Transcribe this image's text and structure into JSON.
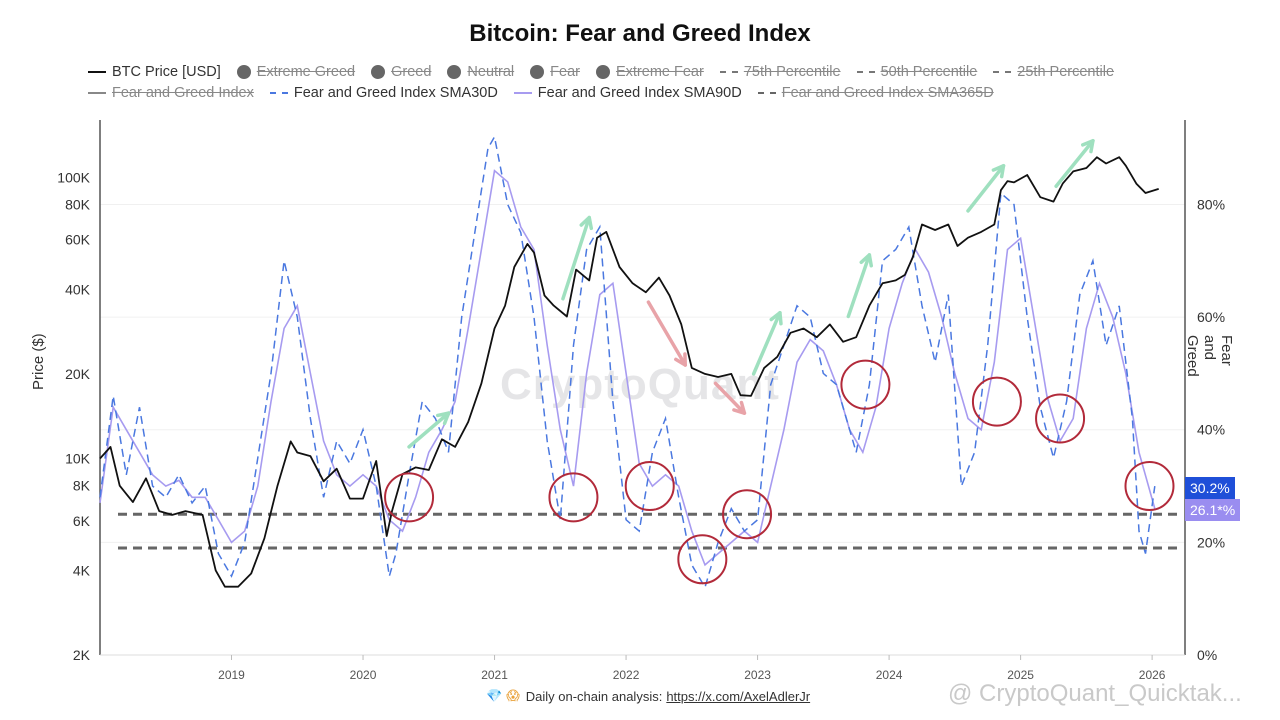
{
  "title": "Bitcoin: Fear and Greed Index",
  "legend": {
    "row1": [
      {
        "label": "BTC Price [USD]",
        "swatch": "solid",
        "color": "#111111",
        "enabled": true
      },
      {
        "label": "Extreme Greed",
        "swatch": "dot",
        "color": "#666666",
        "enabled": false
      },
      {
        "label": "Greed",
        "swatch": "dot",
        "color": "#666666",
        "enabled": false
      },
      {
        "label": "Neutral",
        "swatch": "dot",
        "color": "#666666",
        "enabled": false
      },
      {
        "label": "Fear",
        "swatch": "dot",
        "color": "#666666",
        "enabled": false
      },
      {
        "label": "Extreme Fear",
        "swatch": "dot",
        "color": "#666666",
        "enabled": false
      },
      {
        "label": "75th Percentile",
        "swatch": "dash",
        "color": "#777777",
        "enabled": false
      },
      {
        "label": "50th Percentile",
        "swatch": "dash",
        "color": "#777777",
        "enabled": false
      },
      {
        "label": "25th Percentile",
        "swatch": "dash",
        "color": "#777777",
        "enabled": false
      }
    ],
    "row2": [
      {
        "label": "Fear and Greed Index",
        "swatch": "solid",
        "color": "#888888",
        "enabled": false
      },
      {
        "label": "Fear and Greed Index SMA30D",
        "swatch": "dash",
        "color": "#4a78e0",
        "enabled": true
      },
      {
        "label": "Fear and Greed Index SMA90D",
        "swatch": "solid",
        "color": "#a79bf0",
        "enabled": true
      },
      {
        "label": "Fear and Greed Index SMA365D",
        "swatch": "dash",
        "color": "#666666",
        "enabled": false
      }
    ]
  },
  "axes": {
    "left_label": "Price ($)",
    "right_label": "Fear and Greed"
  },
  "badges": {
    "sma30": {
      "text": "30.2%",
      "color": "#1f4fd8"
    },
    "sma90": {
      "text": "26.1*%",
      "color": "#9a8df0"
    }
  },
  "footer": {
    "gem": "💎",
    "cry": "😱",
    "text": "Daily on-chain analysis:",
    "link": "https://x.com/AxelAdlerJr"
  },
  "watermarks": {
    "center": "CryptoQuant",
    "bottom": "@ CryptoQuant_Quicktak..."
  },
  "chart_data": {
    "type": "line",
    "x_ticks": [
      "2019",
      "2020",
      "2021",
      "2022",
      "2023",
      "2024",
      "2025",
      "2026"
    ],
    "y_left": {
      "scale": "log",
      "ticks": [
        "100K",
        "80K",
        "60K",
        "40K",
        "20K",
        "10K",
        "8K",
        "6K",
        "4K",
        "2K"
      ],
      "range": [
        2000,
        160000
      ]
    },
    "y_right": {
      "ticks": [
        "80%",
        "60%",
        "40%",
        "20%",
        "0%"
      ],
      "range": [
        0,
        95
      ]
    },
    "reference_lines": [
      {
        "label": "25th Percentile",
        "value": 25
      },
      {
        "label": "Extreme Fear",
        "value": 19
      }
    ],
    "series": [
      {
        "name": "BTC Price [USD]",
        "axis": "left",
        "color": "#111111",
        "x": [
          2018.0,
          2018.08,
          2018.15,
          2018.25,
          2018.35,
          2018.45,
          2018.55,
          2018.65,
          2018.78,
          2018.88,
          2018.95,
          2019.05,
          2019.15,
          2019.25,
          2019.35,
          2019.45,
          2019.5,
          2019.6,
          2019.7,
          2019.8,
          2019.9,
          2020.0,
          2020.1,
          2020.18,
          2020.22,
          2020.3,
          2020.4,
          2020.5,
          2020.6,
          2020.7,
          2020.8,
          2020.9,
          2021.0,
          2021.08,
          2021.15,
          2021.25,
          2021.3,
          2021.38,
          2021.45,
          2021.55,
          2021.62,
          2021.72,
          2021.78,
          2021.85,
          2021.95,
          2022.05,
          2022.15,
          2022.25,
          2022.33,
          2022.42,
          2022.5,
          2022.6,
          2022.7,
          2022.8,
          2022.87,
          2022.95,
          2023.05,
          2023.15,
          2023.25,
          2023.35,
          2023.45,
          2023.55,
          2023.65,
          2023.75,
          2023.85,
          2023.95,
          2024.05,
          2024.12,
          2024.18,
          2024.25,
          2024.35,
          2024.45,
          2024.52,
          2024.6,
          2024.7,
          2024.8,
          2024.85,
          2024.9,
          2024.95,
          2025.05,
          2025.15,
          2025.25,
          2025.32,
          2025.4,
          2025.5,
          2025.58,
          2025.65,
          2025.75,
          2025.8,
          2025.88,
          2025.95,
          2026.05
        ],
        "values": [
          10000,
          11000,
          8000,
          7000,
          8500,
          6500,
          6300,
          6500,
          6300,
          4000,
          3500,
          3500,
          3900,
          5200,
          8000,
          11500,
          10500,
          10200,
          8300,
          9200,
          7200,
          7200,
          9800,
          5300,
          6500,
          8800,
          9300,
          9100,
          11700,
          11000,
          13500,
          18500,
          29000,
          35000,
          48000,
          58000,
          54000,
          38000,
          35000,
          32000,
          47000,
          43000,
          61000,
          64000,
          48000,
          42000,
          39000,
          44000,
          38000,
          30000,
          21000,
          20000,
          19500,
          20000,
          16800,
          16700,
          21000,
          23000,
          28000,
          29000,
          27000,
          30000,
          26000,
          27000,
          35000,
          42000,
          43000,
          45000,
          52000,
          68000,
          65000,
          68000,
          57000,
          61000,
          64000,
          68000,
          90000,
          97000,
          96000,
          102000,
          85000,
          82000,
          95000,
          105000,
          108000,
          118000,
          112000,
          118000,
          110000,
          95000,
          88000,
          91000
        ]
      },
      {
        "name": "Fear and Greed Index SMA30D",
        "axis": "right",
        "color": "#4a78e0",
        "x": [
          2018.0,
          2018.1,
          2018.2,
          2018.3,
          2018.4,
          2018.5,
          2018.6,
          2018.7,
          2018.8,
          2018.9,
          2019.0,
          2019.1,
          2019.2,
          2019.3,
          2019.4,
          2019.5,
          2019.6,
          2019.7,
          2019.8,
          2019.9,
          2020.0,
          2020.1,
          2020.2,
          2020.25,
          2020.35,
          2020.45,
          2020.55,
          2020.65,
          2020.75,
          2020.85,
          2020.95,
          2021.0,
          2021.1,
          2021.2,
          2021.3,
          2021.4,
          2021.5,
          2021.6,
          2021.7,
          2021.8,
          2021.9,
          2022.0,
          2022.1,
          2022.2,
          2022.3,
          2022.4,
          2022.5,
          2022.6,
          2022.7,
          2022.8,
          2022.9,
          2023.0,
          2023.1,
          2023.2,
          2023.3,
          2023.4,
          2023.5,
          2023.6,
          2023.7,
          2023.75,
          2023.85,
          2023.95,
          2024.05,
          2024.15,
          2024.25,
          2024.35,
          2024.45,
          2024.55,
          2024.65,
          2024.75,
          2024.85,
          2024.95,
          2025.05,
          2025.15,
          2025.25,
          2025.35,
          2025.45,
          2025.55,
          2025.65,
          2025.75,
          2025.85,
          2025.9,
          2025.95,
          2026.02
        ],
        "values": [
          28,
          46,
          32,
          44,
          30,
          28,
          32,
          27,
          30,
          18,
          14,
          20,
          35,
          50,
          70,
          60,
          42,
          28,
          38,
          34,
          40,
          30,
          14,
          18,
          32,
          45,
          42,
          36,
          60,
          75,
          90,
          92,
          80,
          75,
          60,
          38,
          24,
          55,
          72,
          76,
          45,
          24,
          22,
          36,
          42,
          28,
          16,
          12,
          20,
          26,
          22,
          24,
          48,
          55,
          62,
          60,
          50,
          48,
          40,
          36,
          48,
          70,
          72,
          76,
          62,
          52,
          64,
          30,
          36,
          55,
          82,
          80,
          60,
          44,
          35,
          45,
          64,
          70,
          55,
          62,
          42,
          22,
          18,
          30
        ]
      },
      {
        "name": "Fear and Greed Index SMA90D",
        "axis": "right",
        "color": "#a79bf0",
        "x": [
          2018.0,
          2018.1,
          2018.2,
          2018.3,
          2018.4,
          2018.5,
          2018.6,
          2018.7,
          2018.8,
          2018.9,
          2019.0,
          2019.1,
          2019.2,
          2019.3,
          2019.4,
          2019.5,
          2019.6,
          2019.7,
          2019.8,
          2019.9,
          2020.0,
          2020.1,
          2020.2,
          2020.3,
          2020.4,
          2020.5,
          2020.6,
          2020.7,
          2020.8,
          2020.9,
          2021.0,
          2021.1,
          2021.2,
          2021.3,
          2021.4,
          2021.5,
          2021.6,
          2021.7,
          2021.8,
          2021.9,
          2022.0,
          2022.1,
          2022.2,
          2022.3,
          2022.4,
          2022.5,
          2022.6,
          2022.7,
          2022.8,
          2022.9,
          2023.0,
          2023.1,
          2023.2,
          2023.3,
          2023.4,
          2023.5,
          2023.6,
          2023.7,
          2023.8,
          2023.9,
          2024.0,
          2024.1,
          2024.2,
          2024.3,
          2024.4,
          2024.5,
          2024.6,
          2024.7,
          2024.8,
          2024.9,
          2025.0,
          2025.1,
          2025.2,
          2025.3,
          2025.4,
          2025.5,
          2025.6,
          2025.7,
          2025.8,
          2025.9,
          2026.02
        ],
        "values": [
          27,
          44,
          40,
          36,
          32,
          30,
          31,
          28,
          28,
          24,
          20,
          22,
          30,
          45,
          58,
          62,
          50,
          38,
          32,
          30,
          32,
          30,
          24,
          22,
          28,
          36,
          40,
          45,
          58,
          72,
          86,
          84,
          76,
          72,
          55,
          40,
          30,
          50,
          64,
          66,
          50,
          34,
          30,
          32,
          30,
          22,
          16,
          18,
          20,
          22,
          20,
          30,
          40,
          52,
          56,
          54,
          48,
          40,
          36,
          44,
          58,
          66,
          72,
          68,
          60,
          50,
          42,
          40,
          52,
          72,
          74,
          60,
          46,
          38,
          42,
          58,
          66,
          60,
          50,
          36,
          26
        ]
      }
    ],
    "annotations": {
      "circles": [
        {
          "x": 2020.35,
          "y": 28
        },
        {
          "x": 2021.6,
          "y": 28
        },
        {
          "x": 2022.18,
          "y": 30
        },
        {
          "x": 2022.58,
          "y": 17
        },
        {
          "x": 2022.92,
          "y": 25
        },
        {
          "x": 2023.82,
          "y": 48
        },
        {
          "x": 2024.82,
          "y": 45
        },
        {
          "x": 2025.3,
          "y": 42
        },
        {
          "x": 2025.98,
          "y": 30
        }
      ],
      "arrows_up": [
        {
          "x0": 2020.35,
          "y0": 11000,
          "x1": 2020.65,
          "y1": 14500
        },
        {
          "x0": 2021.52,
          "y0": 37000,
          "x1": 2021.72,
          "y1": 72000
        },
        {
          "x0": 2022.97,
          "y0": 20000,
          "x1": 2023.17,
          "y1": 33000
        },
        {
          "x0": 2023.69,
          "y0": 32000,
          "x1": 2023.85,
          "y1": 53000
        },
        {
          "x0": 2024.6,
          "y0": 76000,
          "x1": 2024.87,
          "y1": 110000
        },
        {
          "x0": 2025.27,
          "y0": 93000,
          "x1": 2025.55,
          "y1": 135000
        }
      ],
      "arrows_down": [
        {
          "x0": 2022.17,
          "y0": 36000,
          "x1": 2022.45,
          "y1": 21500
        },
        {
          "x0": 2022.68,
          "y0": 18500,
          "x1": 2022.9,
          "y1": 14500
        }
      ]
    }
  }
}
